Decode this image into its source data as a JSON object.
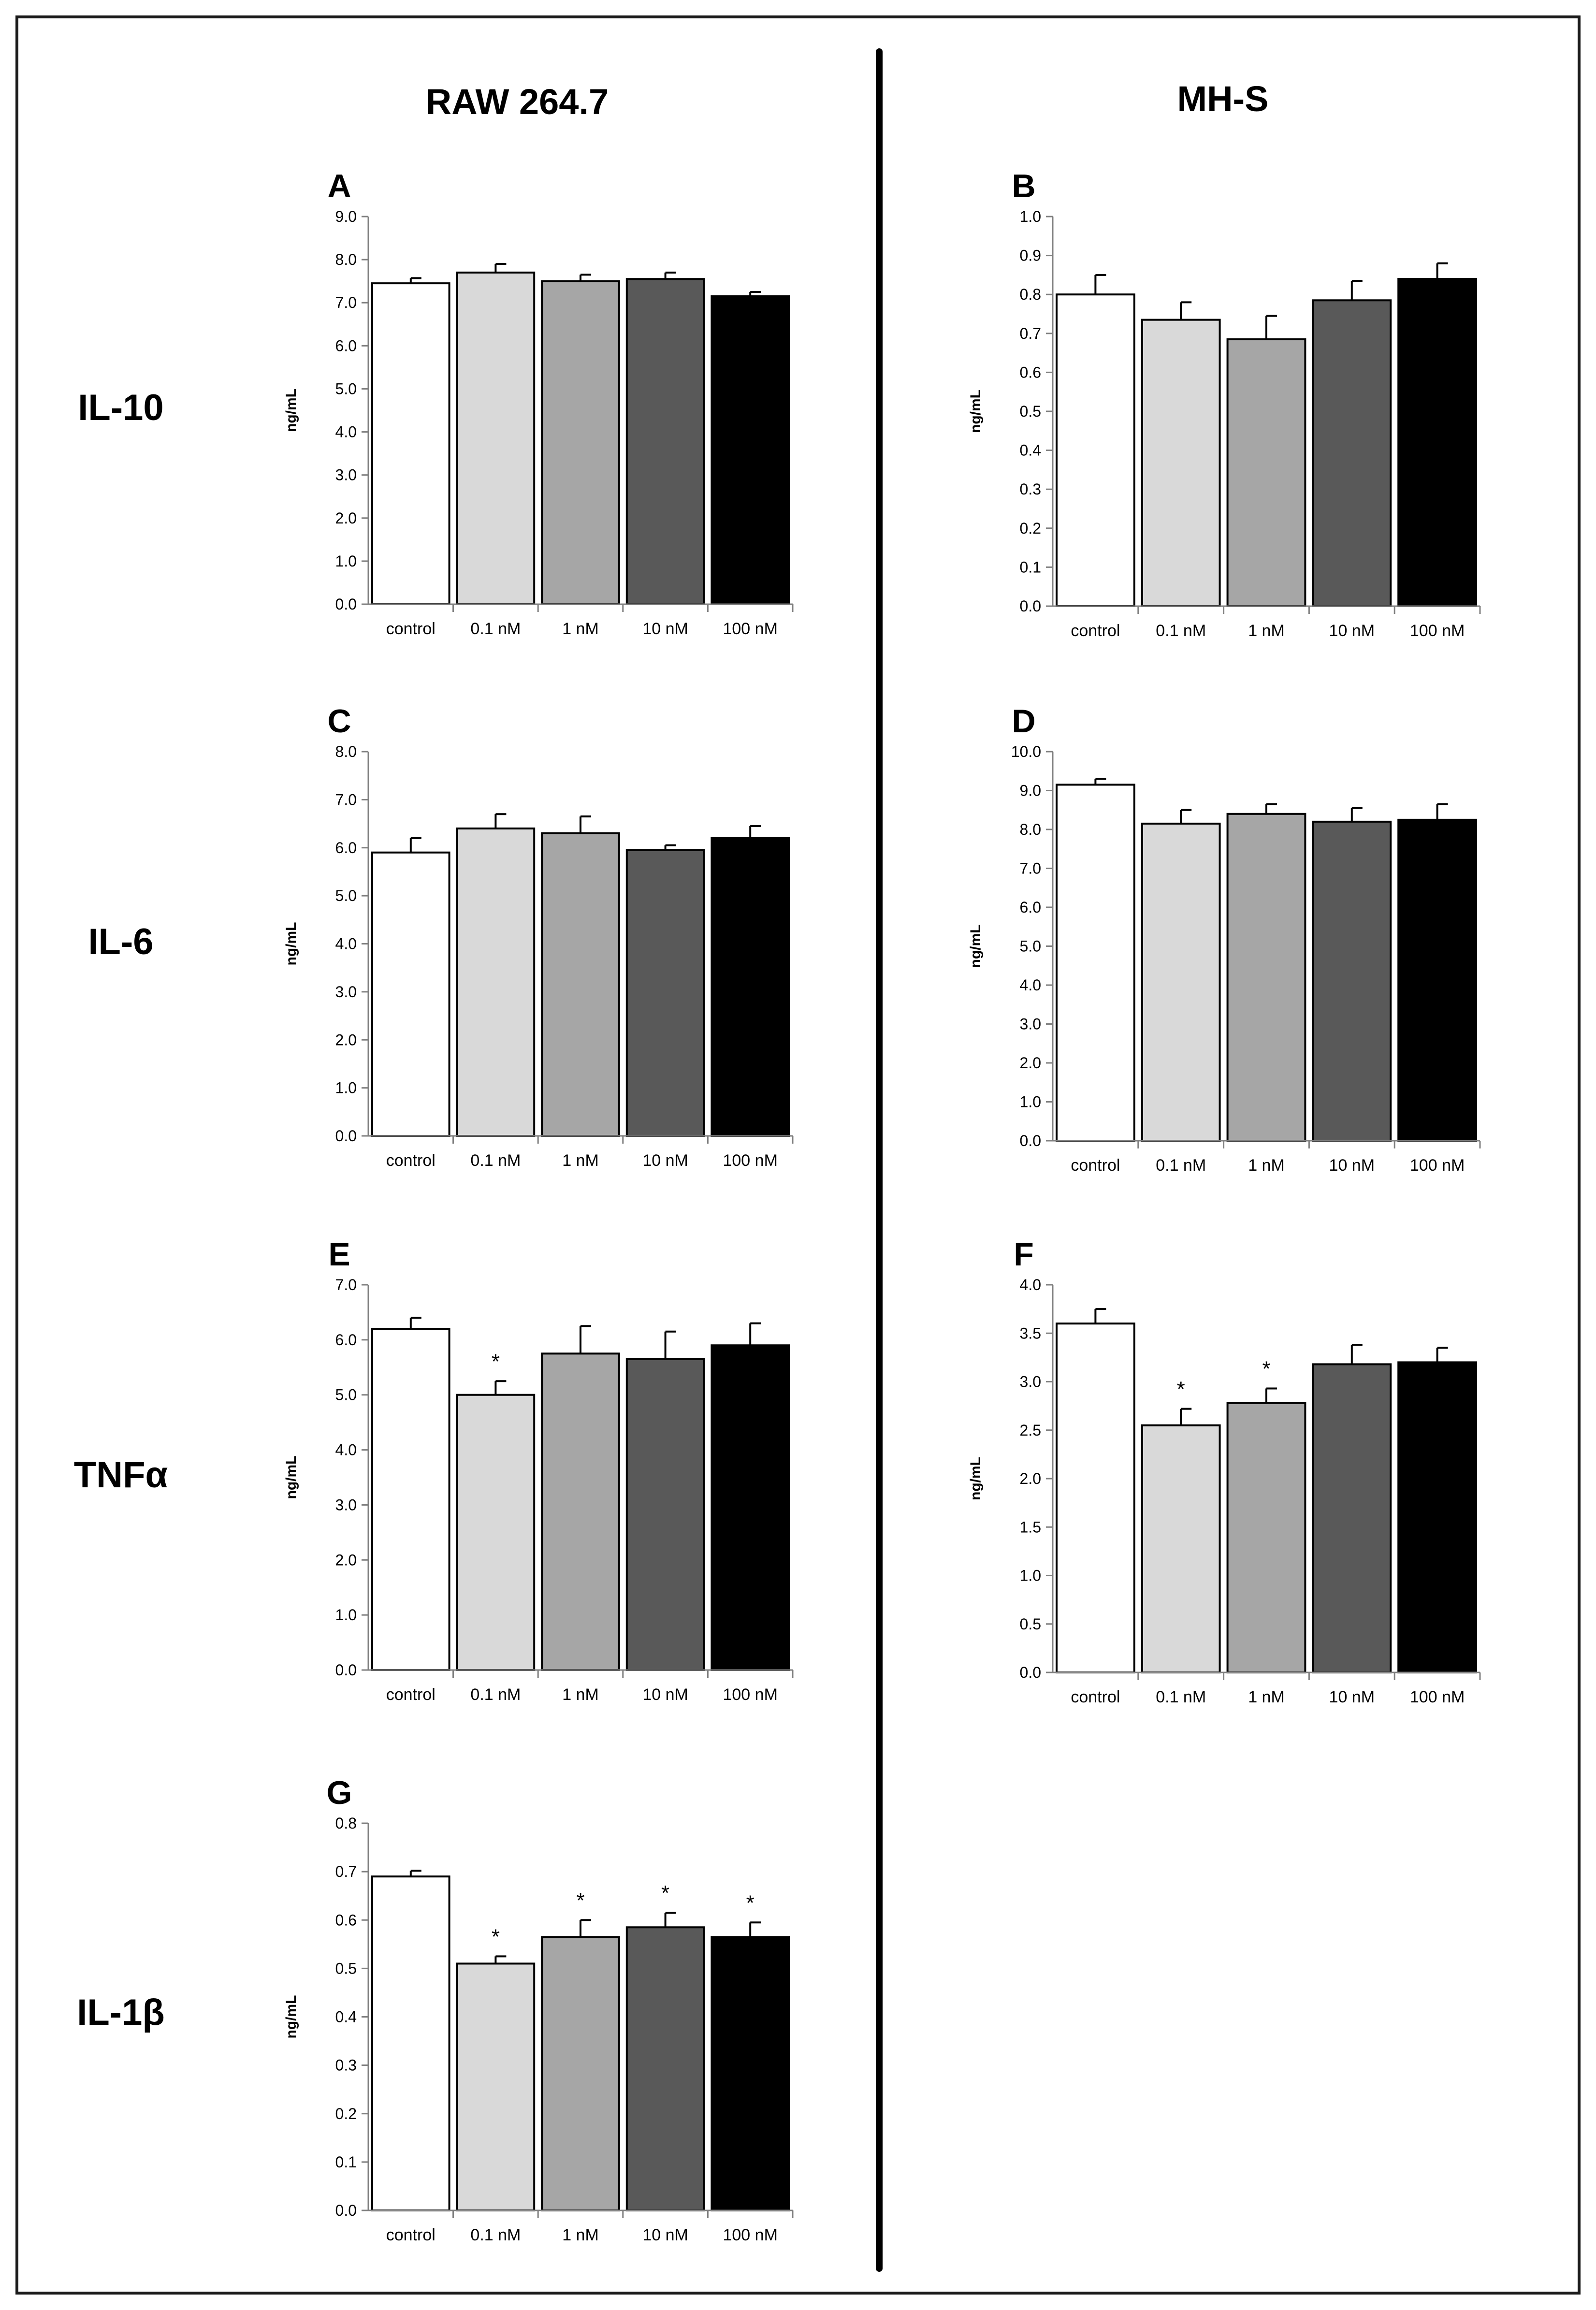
{
  "columns": {
    "left": "RAW 264.7",
    "right": "MH-S"
  },
  "rows": {
    "il10": "IL-10",
    "il6": "IL-6",
    "tnf": "TNFα",
    "il1b": "IL-1β"
  },
  "colors": {
    "control": "#ffffff",
    "0.1 nM": "#d9d9d9",
    "1 nM": "#a6a6a6",
    "10 nM": "#595959",
    "100 nM": "#000000",
    "axis": "#808080",
    "text": "#000000"
  },
  "chart_data": [
    {
      "id": "A",
      "type": "bar",
      "title": "A",
      "ylabel": "ng/mL",
      "categories": [
        "control",
        "0.1 nM",
        "1 nM",
        "10 nM",
        "100 nM"
      ],
      "values": [
        7.45,
        7.7,
        7.5,
        7.55,
        7.15
      ],
      "errors": [
        0.12,
        0.2,
        0.15,
        0.15,
        0.1
      ],
      "significant": [
        false,
        false,
        false,
        false,
        false
      ],
      "ylim": [
        0,
        9
      ],
      "yticks": [
        "0.0",
        "1.0",
        "2.0",
        "3.0",
        "4.0",
        "5.0",
        "6.0",
        "7.0",
        "8.0",
        "9.0"
      ]
    },
    {
      "id": "B",
      "type": "bar",
      "title": "B",
      "ylabel": "ng/mL",
      "categories": [
        "control",
        "0.1 nM",
        "1 nM",
        "10 nM",
        "100 nM"
      ],
      "values": [
        0.8,
        0.735,
        0.685,
        0.785,
        0.84
      ],
      "errors": [
        0.05,
        0.045,
        0.06,
        0.05,
        0.04
      ],
      "significant": [
        false,
        false,
        false,
        false,
        false
      ],
      "ylim": [
        0,
        1
      ],
      "yticks": [
        "0.0",
        "0.1",
        "0.2",
        "0.3",
        "0.4",
        "0.5",
        "0.6",
        "0.7",
        "0.8",
        "0.9",
        "1.0"
      ]
    },
    {
      "id": "C",
      "type": "bar",
      "title": "C",
      "ylabel": "ng/mL",
      "categories": [
        "control",
        "0.1 nM",
        "1 nM",
        "10 nM",
        "100 nM"
      ],
      "values": [
        5.9,
        6.4,
        6.3,
        5.95,
        6.2
      ],
      "errors": [
        0.3,
        0.3,
        0.35,
        0.1,
        0.25
      ],
      "significant": [
        false,
        false,
        false,
        false,
        false
      ],
      "ylim": [
        0,
        8
      ],
      "yticks": [
        "0.0",
        "1.0",
        "2.0",
        "3.0",
        "4.0",
        "5.0",
        "6.0",
        "7.0",
        "8.0"
      ]
    },
    {
      "id": "D",
      "type": "bar",
      "title": "D",
      "ylabel": "ng/mL",
      "categories": [
        "control",
        "0.1 nM",
        "1 nM",
        "10 nM",
        "100 nM"
      ],
      "values": [
        9.15,
        8.15,
        8.4,
        8.2,
        8.25
      ],
      "errors": [
        0.15,
        0.35,
        0.25,
        0.35,
        0.4
      ],
      "significant": [
        false,
        false,
        false,
        false,
        false
      ],
      "ylim": [
        0,
        10
      ],
      "yticks": [
        "0.0",
        "1.0",
        "2.0",
        "3.0",
        "4.0",
        "5.0",
        "6.0",
        "7.0",
        "8.0",
        "9.0",
        "10.0"
      ]
    },
    {
      "id": "E",
      "type": "bar",
      "title": "E",
      "ylabel": "ng/mL",
      "categories": [
        "control",
        "0.1 nM",
        "1 nM",
        "10 nM",
        "100 nM"
      ],
      "values": [
        6.2,
        5.0,
        5.75,
        5.65,
        5.9
      ],
      "errors": [
        0.2,
        0.25,
        0.5,
        0.5,
        0.4
      ],
      "significant": [
        false,
        true,
        false,
        false,
        false
      ],
      "ylim": [
        0,
        7
      ],
      "yticks": [
        "0.0",
        "1.0",
        "2.0",
        "3.0",
        "4.0",
        "5.0",
        "6.0",
        "7.0"
      ]
    },
    {
      "id": "F",
      "type": "bar",
      "title": "F",
      "ylabel": "ng/mL",
      "categories": [
        "control",
        "0.1 nM",
        "1 nM",
        "10 nM",
        "100 nM"
      ],
      "values": [
        3.6,
        2.55,
        2.78,
        3.18,
        3.2
      ],
      "errors": [
        0.15,
        0.17,
        0.15,
        0.2,
        0.15
      ],
      "significant": [
        false,
        true,
        true,
        false,
        false
      ],
      "ylim": [
        0,
        4
      ],
      "yticks": [
        "0.0",
        "0.5",
        "1.0",
        "1.5",
        "2.0",
        "2.5",
        "3.0",
        "3.5",
        "4.0"
      ]
    },
    {
      "id": "G",
      "type": "bar",
      "title": "G",
      "ylabel": "ng/mL",
      "categories": [
        "control",
        "0.1 nM",
        "1 nM",
        "10 nM",
        "100 nM"
      ],
      "values": [
        0.69,
        0.51,
        0.565,
        0.585,
        0.565
      ],
      "errors": [
        0.012,
        0.015,
        0.035,
        0.03,
        0.03
      ],
      "significant": [
        false,
        true,
        true,
        true,
        true
      ],
      "ylim": [
        0,
        0.8
      ],
      "yticks": [
        "0.0",
        "0.1",
        "0.2",
        "0.3",
        "0.4",
        "0.5",
        "0.6",
        "0.7",
        "0.8"
      ]
    }
  ]
}
